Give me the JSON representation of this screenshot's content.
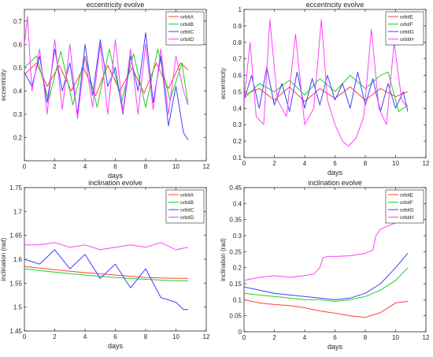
{
  "chart_data": [
    {
      "type": "line",
      "title": "eccentricity evolve",
      "xlabel": "days",
      "ylabel": "eccentricity",
      "xlim": [
        0,
        12
      ],
      "ylim": [
        0.1,
        0.75
      ],
      "xticks": [
        0,
        2,
        4,
        6,
        8,
        10,
        12
      ],
      "yticks": [
        0.2,
        0.3,
        0.4,
        0.5,
        0.6,
        0.7
      ],
      "legend_position": "top-right",
      "grid": false,
      "series": [
        {
          "name": "orbitA",
          "color": "#ff4040",
          "x": [
            0,
            0.8,
            1.5,
            2.3,
            3.1,
            3.9,
            4.7,
            5.5,
            6.3,
            7.1,
            7.9,
            8.7,
            9.5,
            10.3,
            10.8
          ],
          "y": [
            0.47,
            0.52,
            0.42,
            0.51,
            0.4,
            0.5,
            0.38,
            0.51,
            0.4,
            0.5,
            0.39,
            0.52,
            0.41,
            0.52,
            0.49
          ]
        },
        {
          "name": "orbitB",
          "color": "#20d020",
          "x": [
            0,
            0.8,
            1.6,
            2.4,
            3.2,
            4.0,
            4.8,
            5.6,
            6.4,
            7.2,
            8.0,
            8.8,
            9.6,
            10.4,
            10.8
          ],
          "y": [
            0.5,
            0.55,
            0.36,
            0.57,
            0.34,
            0.55,
            0.33,
            0.58,
            0.35,
            0.56,
            0.33,
            0.58,
            0.36,
            0.52,
            0.34
          ]
        },
        {
          "name": "orbitC",
          "color": "#4040ff",
          "x": [
            0,
            0.5,
            1.0,
            1.5,
            2.0,
            2.5,
            3.0,
            3.5,
            4.0,
            4.5,
            5.0,
            5.5,
            6.0,
            6.5,
            7.0,
            7.5,
            8.0,
            8.5,
            9.0,
            9.5,
            10.0,
            10.5,
            10.8
          ],
          "y": [
            0.48,
            0.42,
            0.55,
            0.35,
            0.58,
            0.4,
            0.52,
            0.3,
            0.6,
            0.38,
            0.62,
            0.42,
            0.5,
            0.3,
            0.55,
            0.4,
            0.65,
            0.35,
            0.55,
            0.25,
            0.42,
            0.22,
            0.19
          ]
        },
        {
          "name": "orbitD",
          "color": "#ff40ff",
          "x": [
            0,
            0.2,
            0.5,
            1.0,
            1.5,
            2.0,
            2.5,
            3.0,
            3.5,
            4.0,
            4.5,
            5.0,
            5.5,
            6.0,
            6.5,
            7.0,
            7.5,
            8.0,
            8.5,
            9.0,
            9.5,
            10.0,
            10.5,
            10.8
          ],
          "y": [
            0.6,
            0.72,
            0.4,
            0.58,
            0.3,
            0.62,
            0.32,
            0.6,
            0.28,
            0.55,
            0.33,
            0.6,
            0.3,
            0.62,
            0.31,
            0.58,
            0.3,
            0.6,
            0.32,
            0.58,
            0.3,
            0.55,
            0.4,
            0.34
          ]
        }
      ]
    },
    {
      "type": "line",
      "title": "eccentricity evolve",
      "xlabel": "days",
      "ylabel": "eccentricity",
      "xlim": [
        0,
        12
      ],
      "ylim": [
        0.1,
        1.0
      ],
      "xticks": [
        0,
        2,
        4,
        6,
        8,
        10,
        12
      ],
      "yticks": [
        0.1,
        0.2,
        0.3,
        0.4,
        0.5,
        0.6,
        0.7,
        0.8,
        0.9,
        1.0
      ],
      "legend_position": "top-right",
      "grid": false,
      "series": [
        {
          "name": "orbitE",
          "color": "#ff4040",
          "x": [
            0,
            1,
            2,
            3,
            4,
            5,
            6,
            7,
            8,
            9,
            10,
            10.8
          ],
          "y": [
            0.48,
            0.52,
            0.45,
            0.53,
            0.44,
            0.52,
            0.46,
            0.53,
            0.45,
            0.52,
            0.47,
            0.5
          ]
        },
        {
          "name": "orbitF",
          "color": "#20d020",
          "x": [
            0,
            1,
            2,
            3,
            4,
            5,
            6,
            7,
            8,
            9,
            9.5,
            10.2,
            10.8
          ],
          "y": [
            0.46,
            0.55,
            0.5,
            0.57,
            0.48,
            0.58,
            0.5,
            0.6,
            0.52,
            0.6,
            0.62,
            0.38,
            0.42
          ]
        },
        {
          "name": "orbitG",
          "color": "#4040ff",
          "x": [
            0,
            0.5,
            1.0,
            1.5,
            2.0,
            2.5,
            3.0,
            3.5,
            4.0,
            4.5,
            5.0,
            5.5,
            6.0,
            6.5,
            7.0,
            7.5,
            8.0,
            8.5,
            9.0,
            9.5,
            10.0,
            10.5,
            10.8
          ],
          "y": [
            0.45,
            0.6,
            0.4,
            0.65,
            0.42,
            0.55,
            0.38,
            0.62,
            0.4,
            0.58,
            0.42,
            0.6,
            0.45,
            0.55,
            0.4,
            0.62,
            0.42,
            0.58,
            0.38,
            0.55,
            0.4,
            0.5,
            0.38
          ]
        },
        {
          "name": "orbitH",
          "color": "#ff40ff",
          "x": [
            0,
            0.4,
            0.8,
            1.3,
            1.7,
            2.2,
            2.8,
            3.4,
            4.0,
            4.6,
            5.1,
            5.5,
            6.0,
            6.5,
            6.9,
            7.4,
            7.9,
            8.4,
            8.9,
            9.4,
            9.9,
            10.4,
            10.8
          ],
          "y": [
            0.45,
            0.8,
            0.35,
            0.3,
            0.94,
            0.45,
            0.35,
            0.85,
            0.3,
            0.4,
            0.94,
            0.45,
            0.3,
            0.2,
            0.17,
            0.22,
            0.35,
            0.88,
            0.4,
            0.3,
            0.8,
            0.45,
            0.4
          ]
        }
      ]
    },
    {
      "type": "line",
      "title": "inclination evolve",
      "xlabel": "days",
      "ylabel": "inclination (rad)",
      "xlim": [
        0,
        12
      ],
      "ylim": [
        1.45,
        1.75
      ],
      "xticks": [
        0,
        2,
        4,
        6,
        8,
        10,
        12
      ],
      "yticks": [
        1.45,
        1.5,
        1.55,
        1.6,
        1.65,
        1.7,
        1.75
      ],
      "legend_position": "top-right",
      "grid": false,
      "series": [
        {
          "name": "orbitA",
          "color": "#ff4040",
          "x": [
            0,
            2,
            4,
            6,
            8,
            10,
            10.8
          ],
          "y": [
            1.585,
            1.578,
            1.572,
            1.567,
            1.562,
            1.56,
            1.56
          ]
        },
        {
          "name": "orbitB",
          "color": "#20d020",
          "x": [
            0,
            2,
            4,
            6,
            8,
            10,
            10.8
          ],
          "y": [
            1.58,
            1.573,
            1.567,
            1.562,
            1.558,
            1.555,
            1.555
          ]
        },
        {
          "name": "orbitC",
          "color": "#4040ff",
          "x": [
            0,
            1,
            2,
            3,
            4,
            5,
            6,
            7,
            8,
            9,
            10,
            10.5,
            10.8
          ],
          "y": [
            1.6,
            1.59,
            1.62,
            1.58,
            1.61,
            1.56,
            1.59,
            1.54,
            1.58,
            1.52,
            1.51,
            1.495,
            1.495
          ]
        },
        {
          "name": "orbitD",
          "color": "#ff40ff",
          "x": [
            0,
            1,
            2,
            3,
            4,
            5,
            6,
            7,
            8,
            9,
            10,
            10.8
          ],
          "y": [
            1.63,
            1.63,
            1.635,
            1.625,
            1.63,
            1.62,
            1.625,
            1.63,
            1.625,
            1.635,
            1.62,
            1.625
          ]
        }
      ]
    },
    {
      "type": "line",
      "title": "inclination evolve",
      "xlabel": "days",
      "ylabel": "inclination (rad)",
      "xlim": [
        0,
        12
      ],
      "ylim": [
        0,
        0.45
      ],
      "xticks": [
        0,
        2,
        4,
        6,
        8,
        10,
        12
      ],
      "yticks": [
        0,
        0.05,
        0.1,
        0.15,
        0.2,
        0.25,
        0.3,
        0.35,
        0.4,
        0.45
      ],
      "legend_position": "top-right",
      "grid": false,
      "series": [
        {
          "name": "orbitE",
          "color": "#ff4040",
          "x": [
            0,
            1,
            2,
            3,
            4,
            5,
            6,
            7,
            8,
            9,
            10,
            10.8
          ],
          "y": [
            0.1,
            0.09,
            0.085,
            0.082,
            0.075,
            0.065,
            0.058,
            0.05,
            0.045,
            0.06,
            0.09,
            0.095
          ]
        },
        {
          "name": "orbitF",
          "color": "#20d020",
          "x": [
            0,
            1,
            2,
            3,
            4,
            5,
            6,
            7,
            8,
            9,
            10,
            10.8
          ],
          "y": [
            0.12,
            0.115,
            0.11,
            0.105,
            0.1,
            0.1,
            0.095,
            0.1,
            0.11,
            0.13,
            0.16,
            0.2
          ]
        },
        {
          "name": "orbitG",
          "color": "#4040ff",
          "x": [
            0,
            1,
            2,
            3,
            4,
            5,
            6,
            7,
            8,
            9,
            10,
            10.8
          ],
          "y": [
            0.14,
            0.13,
            0.12,
            0.115,
            0.11,
            0.105,
            0.1,
            0.105,
            0.12,
            0.15,
            0.2,
            0.245
          ]
        },
        {
          "name": "orbitH",
          "color": "#ff40ff",
          "x": [
            0,
            1,
            2,
            3,
            4,
            4.6,
            5,
            5.2,
            5.5,
            6,
            7,
            8,
            8.5,
            8.7,
            9,
            10,
            10.8
          ],
          "y": [
            0.16,
            0.17,
            0.175,
            0.17,
            0.175,
            0.18,
            0.2,
            0.23,
            0.235,
            0.235,
            0.237,
            0.245,
            0.255,
            0.3,
            0.32,
            0.34,
            0.355
          ]
        }
      ]
    }
  ]
}
